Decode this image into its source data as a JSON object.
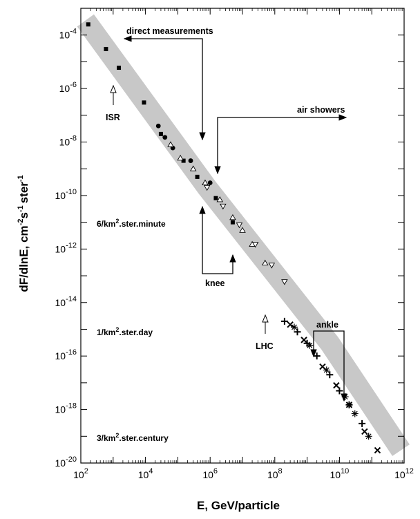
{
  "chart_data": {
    "type": "scatter",
    "title": "",
    "xlabel": "E, GeV/particle",
    "ylabel_parts": [
      "dF/dlnE, cm",
      "-2",
      "s",
      "-1",
      "ster",
      "-1"
    ],
    "x_scale": "log",
    "y_scale": "log",
    "xlim": [
      100,
      1000000000000
    ],
    "ylim": [
      1e-20,
      0.001
    ],
    "x_ticks": [
      {
        "value": 100,
        "base": "10",
        "exp": "2"
      },
      {
        "value": 10000,
        "base": "10",
        "exp": "4"
      },
      {
        "value": 1000000,
        "base": "10",
        "exp": "6"
      },
      {
        "value": 100000000,
        "base": "10",
        "exp": "8"
      },
      {
        "value": 10000000000,
        "base": "10",
        "exp": "10"
      },
      {
        "value": 1000000000000,
        "base": "10",
        "exp": "12"
      }
    ],
    "y_ticks": [
      {
        "value": 0.0001,
        "base": "10",
        "exp": "-4"
      },
      {
        "value": 1e-06,
        "base": "10",
        "exp": "-6"
      },
      {
        "value": 1e-08,
        "base": "10",
        "exp": "-8"
      },
      {
        "value": 1e-10,
        "base": "10",
        "exp": "-10"
      },
      {
        "value": 1e-12,
        "base": "10",
        "exp": "-12"
      },
      {
        "value": 1e-14,
        "base": "10",
        "exp": "-14"
      },
      {
        "value": 1e-16,
        "base": "10",
        "exp": "-16"
      },
      {
        "value": 1e-18,
        "base": "10",
        "exp": "-18"
      },
      {
        "value": 1e-20,
        "base": "10",
        "exp": "-20"
      }
    ],
    "band": {
      "description": "fit band",
      "x": [
        140,
        800000,
        5000000000,
        800000000000
      ],
      "y": [
        0.00035,
        2e-10,
        3e-16,
        3e-20
      ]
    },
    "series": [
      {
        "marker": "filled-square",
        "x": [
          170,
          600,
          1500,
          9000,
          30000,
          150000,
          400000,
          1500000,
          5000000
        ],
        "y": [
          0.00025,
          3e-05,
          6e-06,
          3e-07,
          2e-08,
          2e-09,
          5e-10,
          8e-11,
          1e-11
        ]
      },
      {
        "marker": "filled-circle",
        "x": [
          25000,
          40000,
          70000,
          250000,
          1000000
        ],
        "y": [
          4e-08,
          1.5e-08,
          6e-09,
          2e-09,
          3e-10
        ]
      },
      {
        "marker": "open-triangle",
        "x": [
          60000,
          120000,
          300000,
          700000,
          2000000,
          5000000,
          10000000,
          20000000,
          50000000
        ],
        "y": [
          8e-09,
          2.5e-09,
          1e-09,
          3e-10,
          7e-11,
          1.5e-11,
          5e-12,
          1.5e-12,
          3e-13
        ]
      },
      {
        "marker": "open-inverted-triangle",
        "x": [
          800000,
          2500000,
          8000000,
          25000000,
          80000000,
          200000000
        ],
        "y": [
          2e-10,
          4e-11,
          8e-12,
          1.5e-12,
          2.5e-13,
          6e-14
        ]
      },
      {
        "marker": "plus",
        "x": [
          200000000,
          500000000,
          1000000000,
          2000000000,
          5000000000,
          10000000000,
          20000000000,
          50000000000
        ],
        "y": [
          2e-15,
          8e-16,
          3e-16,
          1e-16,
          2e-17,
          5e-18,
          1.5e-18,
          3e-19
        ]
      },
      {
        "marker": "cross",
        "x": [
          300000000,
          800000000,
          3000000000,
          8000000000,
          20000000000,
          60000000000,
          150000000000
        ],
        "y": [
          1.5e-15,
          4e-16,
          4e-17,
          8e-18,
          1.5e-18,
          1.5e-19,
          3e-20
        ]
      },
      {
        "marker": "asterisk",
        "x": [
          400000000,
          1200000000,
          4000000000,
          15000000000,
          30000000000,
          80000000000
        ],
        "y": [
          1.2e-15,
          2.5e-16,
          3e-17,
          3e-18,
          7e-19,
          1e-19
        ]
      }
    ],
    "annotations": {
      "direct": "direct measurements",
      "air": "air showers",
      "isr": "ISR",
      "knee": "knee",
      "lhc": "LHC",
      "ankle": "ankle",
      "rate1_a": "6/km",
      "rate1_b": ".ster.minute",
      "rate2_a": "1/km",
      "rate2_b": ".ster.day",
      "rate3_a": "3/km",
      "rate3_b": ".ster.century",
      "sq": "2"
    }
  }
}
